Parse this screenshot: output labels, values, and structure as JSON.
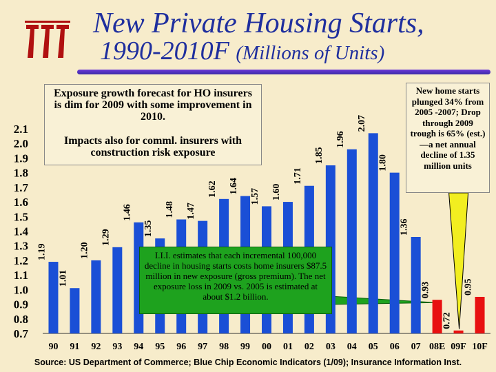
{
  "header": {
    "title_line1": "New Private Housing Starts,",
    "title_line2_main": "1990-2010F",
    "title_line2_sub": "(Millions of Units)"
  },
  "logo": {
    "name": "iii-logo",
    "text": "iii"
  },
  "annotations": {
    "top_left_para1": "Exposure growth forecast for HO insurers is dim for 2009 with some improvement in 2010.",
    "top_left_para2": "Impacts also for comml. insurers with construction risk exposure",
    "top_right": "New home starts plunged 34% from 2005 -2007; Drop through 2009 trough is 65% (est.)—a net annual decline of 1.35 million units",
    "green_box": "I.I.I. estimates that each incremental 100,000 decline in housing starts costs home insurers $87.5 million in new exposure (gross premium). The net exposure loss in 2009 vs. 2005 is estimated at about $1.2 billion."
  },
  "source": "Source: US Department of Commerce; Blue Chip Economic Indicators (1/09); Insurance Information Inst.",
  "colors": {
    "title": "#1f2f9e",
    "bar_blue": "#1a4fd6",
    "bar_red": "#e81010",
    "logo_red": "#b01010",
    "callout_yellow": "#f2ee20",
    "green_box": "#1ea21e"
  },
  "chart_data": {
    "type": "bar",
    "title": "New Private Housing Starts, 1990-2010F (Millions of Units)",
    "xlabel": "",
    "ylabel": "Millions of Units",
    "ylim": [
      0.7,
      2.1
    ],
    "yticks": [
      "0.7",
      "0.8",
      "0.9",
      "1.0",
      "1.1",
      "1.2",
      "1.3",
      "1.4",
      "1.5",
      "1.6",
      "1.7",
      "1.8",
      "1.9",
      "2.0",
      "2.1"
    ],
    "categories": [
      "90",
      "91",
      "92",
      "93",
      "94",
      "95",
      "96",
      "97",
      "98",
      "99",
      "00",
      "01",
      "02",
      "03",
      "04",
      "05",
      "06",
      "07",
      "08E",
      "09F",
      "10F"
    ],
    "values": [
      1.19,
      1.01,
      1.2,
      1.29,
      1.46,
      1.35,
      1.48,
      1.47,
      1.62,
      1.64,
      1.57,
      1.6,
      1.71,
      1.85,
      1.96,
      2.07,
      1.8,
      1.36,
      0.93,
      0.72,
      0.95
    ],
    "labels": [
      "1.19",
      "1.01",
      "1.20",
      "1.29",
      "1.46",
      "1.35",
      "1.48",
      "1.47",
      "1.62",
      "1.64",
      "1.57",
      "1.60",
      "1.71",
      "1.85",
      "1.96",
      "2.07",
      "1.80",
      "1.36",
      "0.93",
      "0.72",
      "0.95"
    ],
    "label_positions": [
      "above",
      "above",
      "above",
      "above",
      "above",
      "above",
      "above",
      "above",
      "above",
      "above",
      "above",
      "above",
      "above",
      "above",
      "above",
      "above",
      "above",
      "above",
      "above",
      "above",
      "above"
    ],
    "highlight": [
      false,
      false,
      false,
      false,
      false,
      false,
      false,
      false,
      false,
      false,
      false,
      false,
      false,
      false,
      false,
      false,
      false,
      false,
      true,
      true,
      true
    ],
    "grid": false
  }
}
